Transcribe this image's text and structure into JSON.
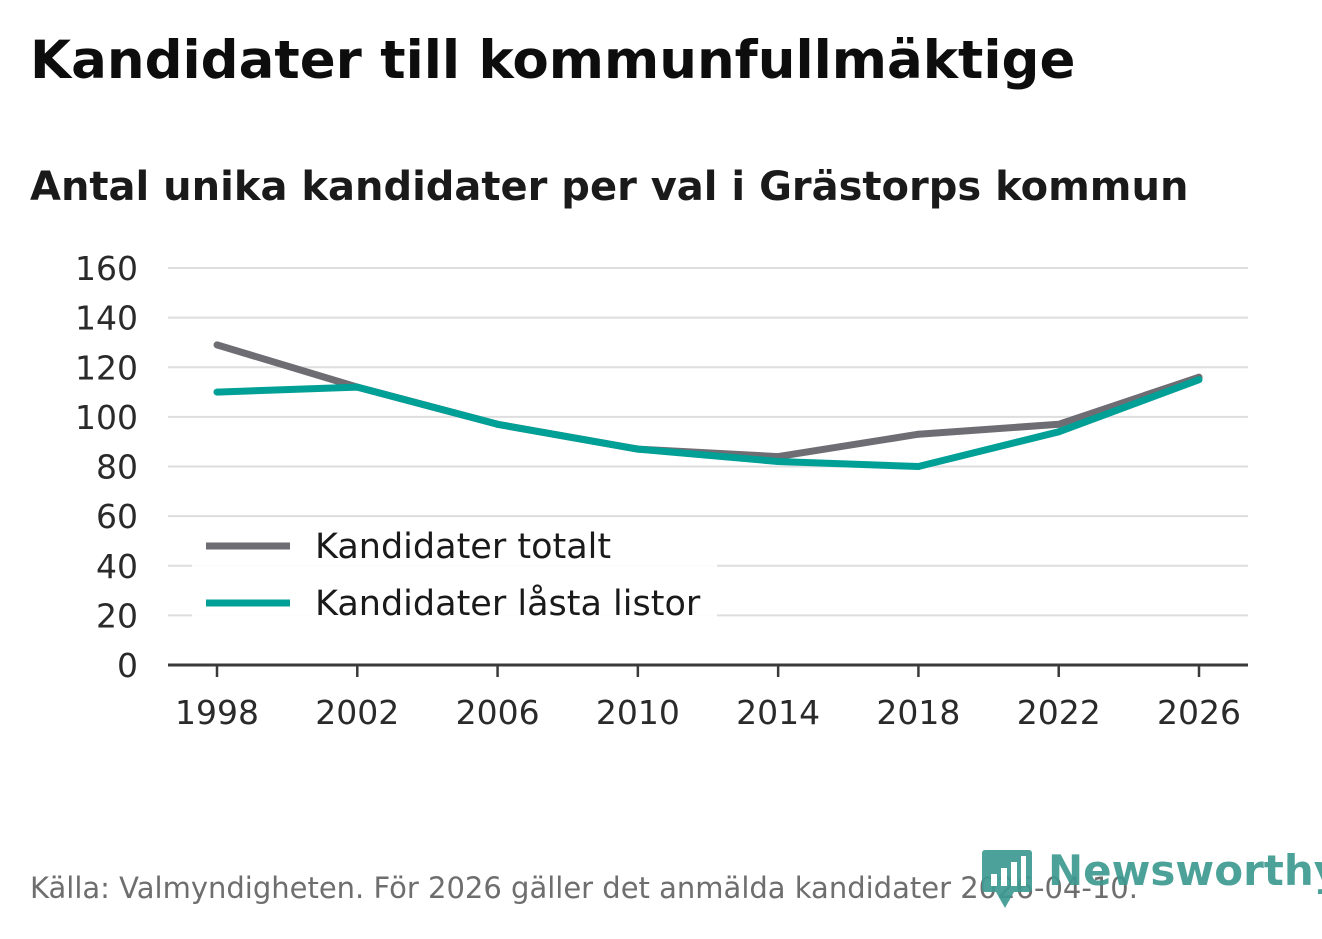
{
  "chart_data": {
    "type": "line",
    "title": "Kandidater till kommunfullmäktige",
    "subtitle": "Antal unika kandidater per val i Grästorps kommun",
    "x": [
      "1998",
      "2002",
      "2006",
      "2010",
      "2014",
      "2018",
      "2022",
      "2026"
    ],
    "y_ticks": [
      "0",
      "20",
      "40",
      "60",
      "80",
      "100",
      "120",
      "140",
      "160"
    ],
    "ylim": [
      0,
      160
    ],
    "xlabel": "",
    "ylabel": "",
    "grid": true,
    "legend_position": "lower-left",
    "series": [
      {
        "name": "Kandidater totalt",
        "color": "#6e6d73",
        "values": [
          129,
          112,
          97,
          87,
          84,
          93,
          97,
          116
        ]
      },
      {
        "name": "Kandidater låsta listor",
        "color": "#00a097",
        "values": [
          110,
          112,
          97,
          87,
          82,
          80,
          94,
          115
        ]
      }
    ]
  },
  "footer": {
    "source": "Källa: Valmyndigheten. För 2026 gäller det anmälda kandidater 2026-04-10.",
    "logo_text": "Newsworthy",
    "logo_color": "#3d9a91"
  }
}
